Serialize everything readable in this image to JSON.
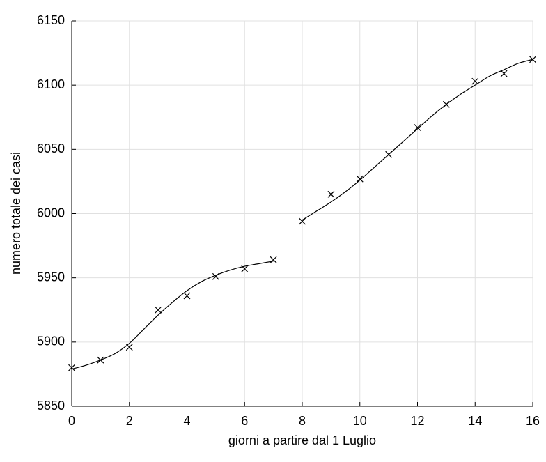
{
  "chart_data": {
    "type": "scatter",
    "xlabel": "giorni a partire dal 1 Luglio",
    "ylabel": "numero totale dei casi",
    "xlim": [
      0,
      16
    ],
    "xticks": [
      0,
      2,
      4,
      6,
      8,
      10,
      12,
      14,
      16
    ],
    "ylim": [
      5850,
      6150
    ],
    "yticks": [
      5850,
      5900,
      5950,
      6000,
      6050,
      6100,
      6150
    ],
    "grid": true,
    "series": [
      {
        "kind": "markers",
        "color": "#000000",
        "x": [
          0,
          1,
          2,
          3,
          4,
          5,
          6,
          7,
          8,
          9,
          10,
          11,
          12,
          13,
          14,
          15,
          16
        ],
        "values": [
          5880,
          5886,
          5896,
          5925,
          5936,
          5951,
          5957,
          5964,
          5994,
          6015,
          6027,
          6046,
          6067,
          6085,
          6103,
          6109,
          6120
        ]
      },
      {
        "kind": "line",
        "color": "#000000",
        "x": [
          0,
          0.5,
          1,
          1.5,
          2,
          2.5,
          3,
          3.5,
          4,
          4.5,
          5,
          5.5,
          6,
          6.5,
          7
        ],
        "values": [
          5879,
          5882,
          5886,
          5891,
          5899,
          5910,
          5921,
          5931,
          5940,
          5947,
          5952,
          5956,
          5959,
          5961,
          5963
        ]
      },
      {
        "kind": "line",
        "color": "#000000",
        "x": [
          8,
          8.5,
          9,
          9.5,
          10,
          10.5,
          11,
          11.5,
          12,
          12.5,
          13,
          13.5,
          14,
          14.5,
          15,
          15.5,
          16
        ],
        "values": [
          5995,
          6002,
          6009,
          6017,
          6026,
          6036,
          6046,
          6056,
          6066,
          6076,
          6085,
          6093,
          6100,
          6107,
          6112,
          6117,
          6120
        ]
      }
    ]
  }
}
